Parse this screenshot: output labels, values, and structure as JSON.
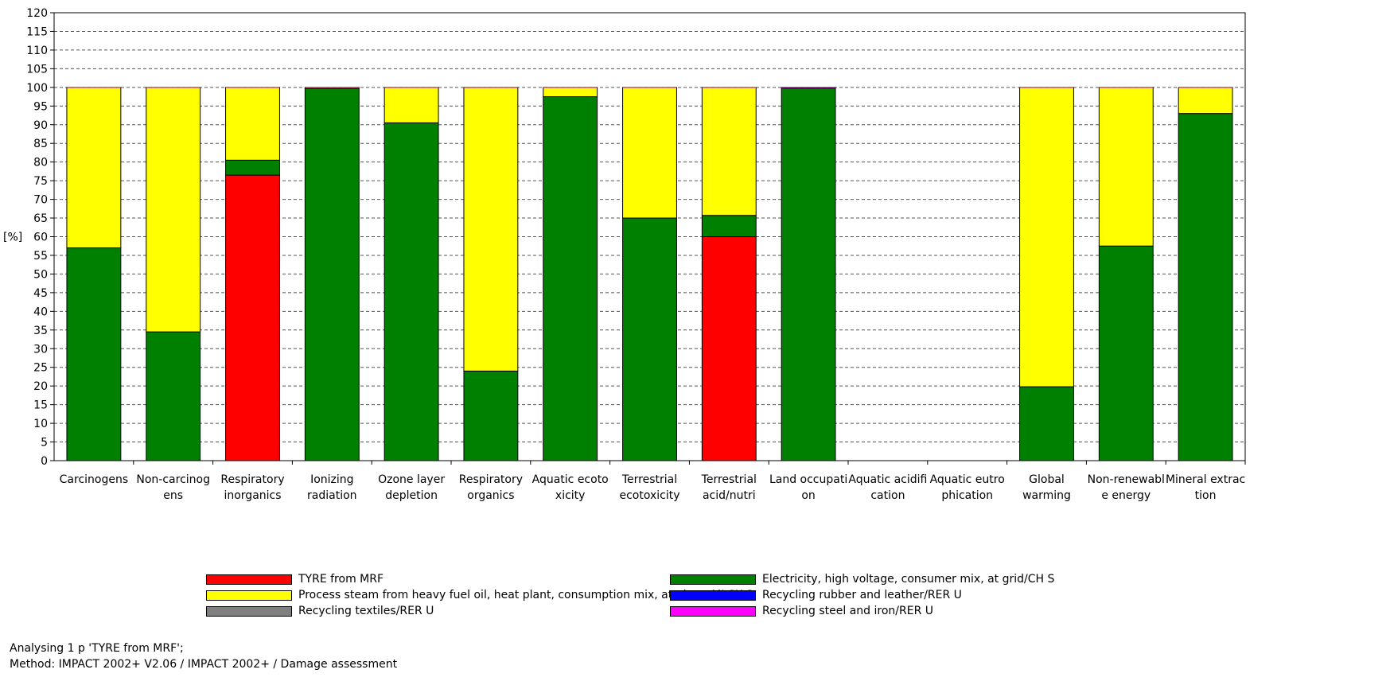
{
  "chart_data": {
    "type": "bar",
    "stacked": true,
    "ylabel": "[%]",
    "ylim": [
      0,
      120
    ],
    "ytick_step": 5,
    "grid": true,
    "legend_position": "bottom",
    "categories": [
      [
        "Carcinogens"
      ],
      [
        "Non-carcinog",
        "ens"
      ],
      [
        "Respiratory",
        "inorganics"
      ],
      [
        "Ionizing",
        "radiation"
      ],
      [
        "Ozone layer",
        "depletion"
      ],
      [
        "Respiratory",
        "organics"
      ],
      [
        "Aquatic ecoto",
        "xicity"
      ],
      [
        "Terrestrial",
        "ecotoxicity"
      ],
      [
        "Terrestrial",
        "acid/nutri"
      ],
      [
        "Land occupati",
        "on"
      ],
      [
        "Aquatic acidifi",
        "cation"
      ],
      [
        "Aquatic eutro",
        "phication"
      ],
      [
        "Global",
        "warming"
      ],
      [
        "Non-renewabl",
        "e energy"
      ],
      [
        "Mineral extrac",
        "tion"
      ]
    ],
    "series": [
      {
        "name": "TYRE from MRF",
        "color": "#ff0000",
        "values": [
          0,
          0,
          76.5,
          0,
          0,
          0,
          0,
          0,
          60,
          0,
          0,
          0,
          0,
          0,
          0
        ]
      },
      {
        "name": "Electricity, high voltage, consumer mix, at grid/CH S",
        "color": "#008000",
        "values": [
          57,
          34.5,
          4,
          99.7,
          90.5,
          24,
          97.5,
          65,
          5.7,
          99.8,
          0,
          0,
          19.8,
          57.5,
          93
        ]
      },
      {
        "name": "Process steam from heavy fuel oil, heat plant, consumption mix, at plant, MJ SK S",
        "color": "#ffff00",
        "values": [
          43,
          65.5,
          19.5,
          0.3,
          9.5,
          76,
          2.5,
          35,
          34.3,
          0.2,
          0,
          0,
          80.2,
          42.5,
          7
        ]
      },
      {
        "name": "Recycling rubber and leather/RER U",
        "color": "#0000ff",
        "values": [
          0,
          0,
          0,
          0,
          0,
          0,
          0,
          0,
          0,
          0,
          0,
          0,
          0,
          0,
          0
        ]
      },
      {
        "name": "Recycling textiles/RER U",
        "color": "#808080",
        "values": [
          0,
          0,
          0,
          0,
          0,
          0,
          0,
          0,
          0,
          0,
          0,
          0,
          0,
          0,
          0
        ]
      },
      {
        "name": "Recycling steel and iron/RER U",
        "color": "#ff00ff",
        "values": [
          0,
          0,
          0,
          0,
          0,
          0,
          0,
          0,
          0,
          0,
          0,
          0,
          0,
          0,
          0
        ]
      }
    ]
  },
  "legend": {
    "left": [
      {
        "label": "TYRE from MRF",
        "color": "#ff0000"
      },
      {
        "label": "Process steam from heavy fuel oil, heat plant, consumption mix, at plant, MJ SK S",
        "color": "#ffff00"
      },
      {
        "label": "Recycling textiles/RER U",
        "color": "#808080"
      }
    ],
    "right": [
      {
        "label": "Electricity, high voltage, consumer mix, at grid/CH S",
        "color": "#008000"
      },
      {
        "label": "Recycling rubber and leather/RER U",
        "color": "#0000ff"
      },
      {
        "label": "Recycling steel and iron/RER U",
        "color": "#ff00ff"
      }
    ]
  },
  "footer": {
    "line1": "Analysing 1 p 'TYRE from MRF';",
    "line2": "Method: IMPACT 2002+ V2.06 / IMPACT 2002+ / Damage assessment"
  }
}
